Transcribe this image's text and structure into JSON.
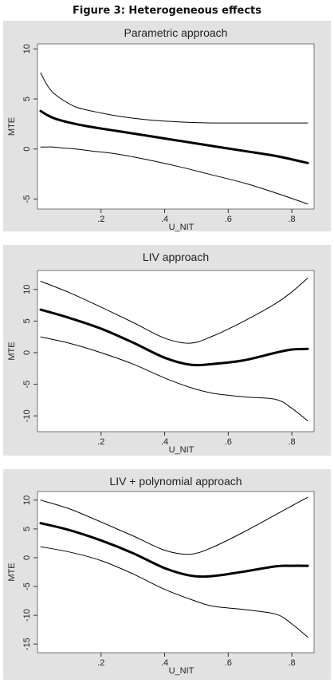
{
  "figure_title": "Figure 3: Heterogeneous effects",
  "colors": {
    "panel_background": "#e2e2e2",
    "plot_background": "#ffffff",
    "line": "#000000"
  },
  "chart_data": [
    {
      "type": "line",
      "title": "Parametric approach",
      "xlabel": "U_NIT",
      "ylabel": "MTE",
      "xlim": [
        0,
        0.87
      ],
      "ylim": [
        -6,
        10.5
      ],
      "x_ticks": [
        {
          "value": 0.2,
          "label": ".2"
        },
        {
          "value": 0.4,
          "label": ".4"
        },
        {
          "value": 0.6,
          "label": ".6"
        },
        {
          "value": 0.8,
          "label": ".8"
        }
      ],
      "y_ticks": [
        {
          "value": 10,
          "label": "10"
        },
        {
          "value": 5,
          "label": "5"
        },
        {
          "value": 0,
          "label": "0"
        },
        {
          "value": -5,
          "label": "-5"
        }
      ],
      "grid": false,
      "x": [
        0.01,
        0.03,
        0.05,
        0.08,
        0.12,
        0.17,
        0.25,
        0.35,
        0.45,
        0.55,
        0.65,
        0.75,
        0.85
      ],
      "series": [
        {
          "role": "upper",
          "values": [
            7.6,
            6.4,
            5.6,
            4.9,
            4.2,
            3.8,
            3.3,
            2.9,
            2.7,
            2.6,
            2.6,
            2.6,
            2.6
          ]
        },
        {
          "role": "estimate",
          "values": [
            3.8,
            3.4,
            3.1,
            2.8,
            2.5,
            2.2,
            1.8,
            1.3,
            0.8,
            0.3,
            -0.2,
            -0.7,
            -1.4
          ]
        },
        {
          "role": "lower",
          "values": [
            0.2,
            0.2,
            0.2,
            0.1,
            0.0,
            -0.2,
            -0.5,
            -1.1,
            -1.8,
            -2.6,
            -3.4,
            -4.4,
            -5.5
          ]
        }
      ]
    },
    {
      "type": "line",
      "title": "LIV approach",
      "xlabel": "U_NIT",
      "ylabel": "MTE",
      "xlim": [
        0,
        0.87
      ],
      "ylim": [
        -12.5,
        13
      ],
      "x_ticks": [
        {
          "value": 0.2,
          "label": ".2"
        },
        {
          "value": 0.4,
          "label": ".4"
        },
        {
          "value": 0.6,
          "label": ".6"
        },
        {
          "value": 0.8,
          "label": ".8"
        }
      ],
      "y_ticks": [
        {
          "value": 10,
          "label": "10"
        },
        {
          "value": 5,
          "label": "5"
        },
        {
          "value": 0,
          "label": "0"
        },
        {
          "value": -5,
          "label": "-5"
        },
        {
          "value": -10,
          "label": "-10"
        }
      ],
      "grid": false,
      "x": [
        0.01,
        0.1,
        0.2,
        0.3,
        0.4,
        0.48,
        0.55,
        0.65,
        0.75,
        0.8,
        0.85
      ],
      "series": [
        {
          "role": "upper",
          "values": [
            11.3,
            9.5,
            7.2,
            4.8,
            2.3,
            1.5,
            2.6,
            5.0,
            7.8,
            9.6,
            11.8
          ]
        },
        {
          "role": "estimate",
          "values": [
            6.8,
            5.5,
            3.8,
            1.6,
            -0.8,
            -1.9,
            -1.8,
            -1.2,
            0.0,
            0.5,
            0.6
          ]
        },
        {
          "role": "lower",
          "values": [
            2.5,
            1.5,
            0.0,
            -1.8,
            -4.0,
            -5.5,
            -6.4,
            -7.0,
            -7.4,
            -8.8,
            -10.8
          ]
        }
      ]
    },
    {
      "type": "line",
      "title": "LIV +  polynomial approach",
      "xlabel": "U_NIT",
      "ylabel": "MTE",
      "xlim": [
        0,
        0.87
      ],
      "ylim": [
        -16.5,
        11.5
      ],
      "x_ticks": [
        {
          "value": 0.2,
          "label": ".2"
        },
        {
          "value": 0.4,
          "label": ".4"
        },
        {
          "value": 0.6,
          "label": ".6"
        },
        {
          "value": 0.8,
          "label": ".8"
        }
      ],
      "y_ticks": [
        {
          "value": 10,
          "label": "10"
        },
        {
          "value": 5,
          "label": "5"
        },
        {
          "value": 0,
          "label": "0"
        },
        {
          "value": -5,
          "label": "-5"
        },
        {
          "value": -10,
          "label": "-10"
        },
        {
          "value": -15,
          "label": "-15"
        }
      ],
      "grid": false,
      "x": [
        0.01,
        0.1,
        0.2,
        0.3,
        0.4,
        0.48,
        0.55,
        0.65,
        0.75,
        0.8,
        0.85
      ],
      "series": [
        {
          "role": "upper",
          "values": [
            10.0,
            8.5,
            6.2,
            3.8,
            1.3,
            0.6,
            1.8,
            4.5,
            7.5,
            9.0,
            10.5
          ]
        },
        {
          "role": "estimate",
          "values": [
            6.0,
            4.8,
            3.0,
            0.8,
            -1.8,
            -3.1,
            -3.2,
            -2.4,
            -1.5,
            -1.4,
            -1.4
          ]
        },
        {
          "role": "lower",
          "values": [
            1.9,
            1.0,
            -0.5,
            -2.8,
            -5.5,
            -7.2,
            -8.4,
            -9.0,
            -9.8,
            -11.5,
            -13.8
          ]
        }
      ]
    }
  ]
}
